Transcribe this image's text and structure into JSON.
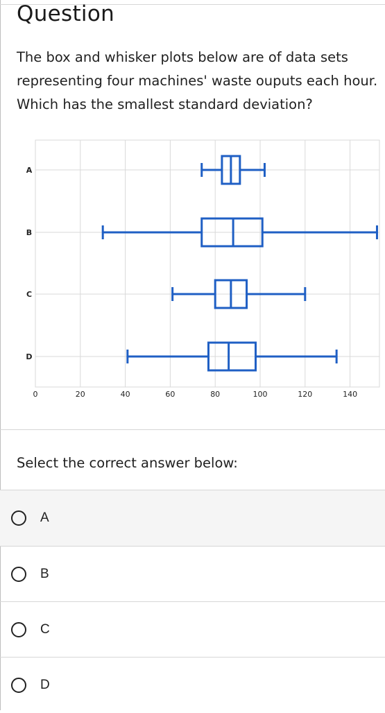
{
  "question": {
    "title": "Question",
    "text": "The box and whisker plots below are of data sets representing four machines' waste ouputs each hour. Which has the smallest standard deviation?"
  },
  "chart_data": {
    "type": "boxplot",
    "orientation": "horizontal",
    "categories": [
      "A",
      "B",
      "C",
      "D"
    ],
    "boxes": [
      {
        "label": "A",
        "min": 74,
        "q1": 83,
        "median": 87,
        "q3": 91,
        "max": 102
      },
      {
        "label": "B",
        "min": 30,
        "q1": 74,
        "median": 88,
        "q3": 101,
        "max": 152
      },
      {
        "label": "C",
        "min": 61,
        "q1": 80,
        "median": 87,
        "q3": 94,
        "max": 120
      },
      {
        "label": "D",
        "min": 41,
        "q1": 77,
        "median": 86,
        "q3": 98,
        "max": 134
      }
    ],
    "x_ticks": [
      0,
      20,
      40,
      60,
      80,
      100,
      120,
      140
    ],
    "xlim": [
      0,
      150
    ],
    "grid": true,
    "color": "#1f5fc4"
  },
  "prompt": {
    "select_label": "Select the correct answer below:"
  },
  "options": [
    {
      "label": "A"
    },
    {
      "label": "B"
    },
    {
      "label": "C"
    },
    {
      "label": "D"
    }
  ],
  "colors": {
    "box": "#1f5fc4",
    "grid": "#d9d9d9",
    "hover_bg": "#f5f5f5"
  }
}
